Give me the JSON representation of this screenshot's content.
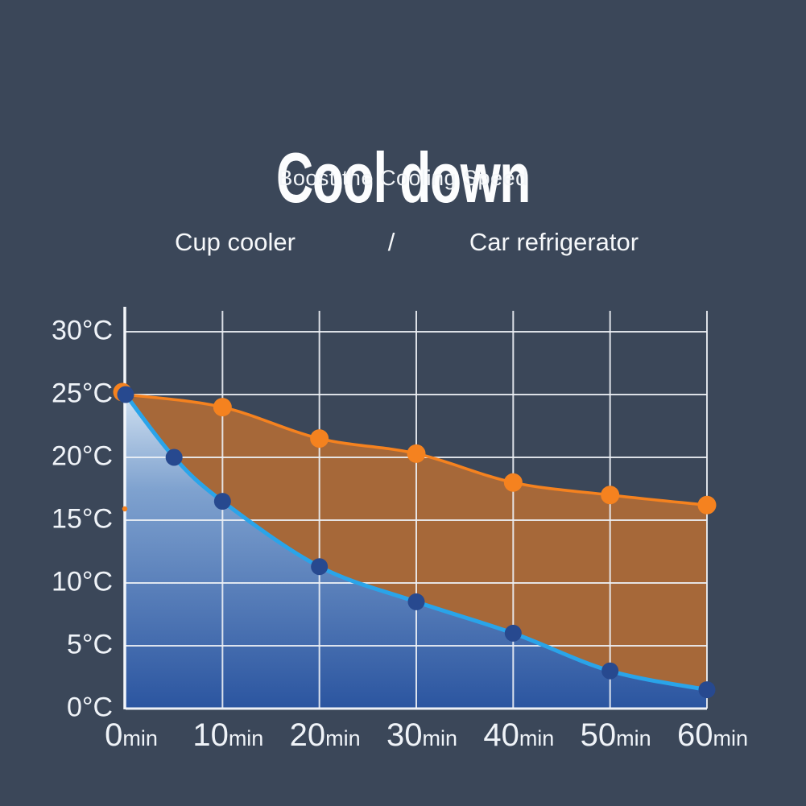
{
  "header": {
    "title": "Cool down",
    "subtitle": "Boost the Cooling Speed"
  },
  "legend": {
    "left_label": "Cup cooler",
    "separator": "/",
    "right_label": "Car refrigerator"
  },
  "chart_data": {
    "type": "line",
    "title": "Cool down",
    "subtitle": "Boost the Cooling Speed",
    "x_unit": "min",
    "y_unit": "°C",
    "xlim": [
      0,
      60
    ],
    "ylim": [
      0,
      30
    ],
    "x_ticks": [
      0,
      10,
      20,
      30,
      40,
      50,
      60
    ],
    "y_ticks": [
      0,
      5,
      10,
      15,
      20,
      25,
      30
    ],
    "grid": true,
    "legend_position": "above-chart",
    "background_color": "#3b4759",
    "grid_color": "#eef1f6",
    "series": [
      {
        "name": "Cup cooler",
        "x": [
          0,
          5,
          10,
          20,
          30,
          40,
          50,
          60
        ],
        "values": [
          25,
          20,
          16.5,
          11.3,
          8.5,
          6,
          3,
          1.5
        ],
        "line_color": "#2aa4e9",
        "point_color": "#27498f",
        "area_fill": "gradient-under-line",
        "area_gradient": [
          "#d6e5f3",
          "#7fa2cf",
          "#2b55a0"
        ]
      },
      {
        "name": "Car refrigerator",
        "x": [
          0,
          10,
          20,
          30,
          40,
          50,
          60
        ],
        "values": [
          25,
          24,
          21.5,
          20.3,
          18,
          17,
          16.2
        ],
        "line_color": "#f5821f",
        "point_color": "#f5821f",
        "area_fill": "between-series",
        "area_color": "rgba(244,130,35,0.58)"
      }
    ]
  }
}
